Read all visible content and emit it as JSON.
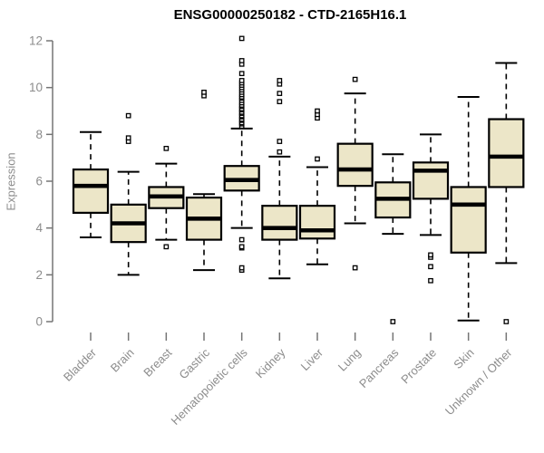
{
  "chart_data": {
    "type": "boxplot",
    "title": "ENSG00000250182 - CTD-2165H16.1",
    "ylabel": "Expression",
    "xlabel": "",
    "ylim": [
      0,
      12
    ],
    "yticks": [
      0,
      2,
      4,
      6,
      8,
      10,
      12
    ],
    "grid": "off",
    "legend": "none",
    "categories": [
      "Bladder",
      "Brain",
      "Breast",
      "Gastric",
      "Hematopoietic cells",
      "Kidney",
      "Liver",
      "Lung",
      "Pancreas",
      "Prostate",
      "Skin",
      "Unknown / Other"
    ],
    "boxes": [
      {
        "category": "Bladder",
        "whisker_low": 3.6,
        "q1": 4.65,
        "median": 5.8,
        "q3": 6.5,
        "whisker_high": 8.1,
        "outliers": []
      },
      {
        "category": "Brain",
        "whisker_low": 2.0,
        "q1": 3.4,
        "median": 4.2,
        "q3": 5.0,
        "whisker_high": 6.4,
        "outliers": [
          7.7,
          7.85,
          8.8
        ]
      },
      {
        "category": "Breast",
        "whisker_low": 3.5,
        "q1": 4.85,
        "median": 5.35,
        "q3": 5.75,
        "whisker_high": 6.75,
        "outliers": [
          3.2,
          7.4
        ]
      },
      {
        "category": "Gastric",
        "whisker_low": 2.2,
        "q1": 3.5,
        "median": 4.4,
        "q3": 5.3,
        "whisker_high": 5.45,
        "outliers": [
          9.65,
          9.8
        ]
      },
      {
        "category": "Hematopoietic cells",
        "whisker_low": 4.0,
        "q1": 5.6,
        "median": 6.05,
        "q3": 6.65,
        "whisker_high": 8.25,
        "outliers": [
          2.2,
          2.3,
          3.15,
          3.2,
          3.5,
          8.35,
          8.45,
          8.5,
          8.6,
          8.65,
          8.75,
          8.8,
          8.9,
          8.95,
          9.05,
          9.1,
          9.2,
          9.25,
          9.35,
          9.45,
          9.55,
          9.6,
          9.7,
          9.8,
          9.9,
          10.0,
          10.1,
          10.2,
          10.3,
          10.6,
          11.0,
          11.15,
          12.1
        ]
      },
      {
        "category": "Kidney",
        "whisker_low": 1.85,
        "q1": 3.5,
        "median": 4.0,
        "q3": 4.95,
        "whisker_high": 7.05,
        "outliers": [
          7.25,
          7.7,
          9.4,
          9.75,
          10.15,
          10.3
        ]
      },
      {
        "category": "Liver",
        "whisker_low": 2.45,
        "q1": 3.55,
        "median": 3.9,
        "q3": 4.95,
        "whisker_high": 6.6,
        "outliers": [
          6.95,
          8.7,
          8.85,
          9.0
        ]
      },
      {
        "category": "Lung",
        "whisker_low": 4.2,
        "q1": 5.8,
        "median": 6.5,
        "q3": 7.6,
        "whisker_high": 9.75,
        "outliers": [
          2.3,
          10.35
        ]
      },
      {
        "category": "Pancreas",
        "whisker_low": 3.75,
        "q1": 4.45,
        "median": 5.25,
        "q3": 5.95,
        "whisker_high": 7.15,
        "outliers": [
          0.0
        ]
      },
      {
        "category": "Prostate",
        "whisker_low": 3.7,
        "q1": 5.25,
        "median": 6.45,
        "q3": 6.8,
        "whisker_high": 8.0,
        "outliers": [
          1.75,
          2.35,
          2.75,
          2.85
        ]
      },
      {
        "category": "Skin",
        "whisker_low": 0.05,
        "q1": 2.95,
        "median": 5.0,
        "q3": 5.75,
        "whisker_high": 9.6,
        "outliers": []
      },
      {
        "category": "Unknown / Other",
        "whisker_low": 2.5,
        "q1": 5.75,
        "median": 7.05,
        "q3": 8.65,
        "whisker_high": 11.05,
        "outliers": [
          0.0
        ]
      }
    ]
  },
  "colors": {
    "box_fill": "#ece6c8",
    "box_stroke": "#000000",
    "median": "#000000",
    "axis": "#757575",
    "tick_label": "#8c8c8c",
    "title": "#000000",
    "background": "#ffffff",
    "outlier_fill": "#ffffff"
  }
}
